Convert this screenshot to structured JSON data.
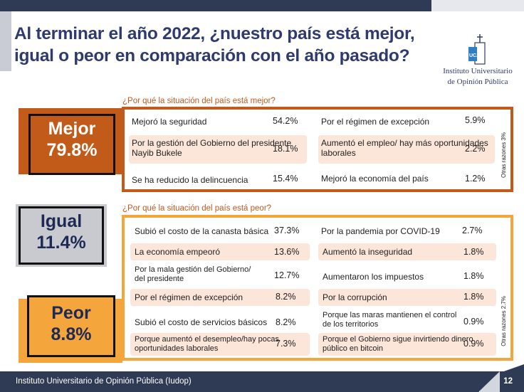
{
  "title": "Al terminar el año 2022, ¿nuestro país está mejor, igual o peor en comparación con el año pasado?",
  "logo": {
    "line1": "Instituto Universitario",
    "line2": "de Opinión Pública",
    "mark_text": "UCA"
  },
  "categories": {
    "mejor": {
      "label": "Mejor",
      "value": "79.8%",
      "color": "#c25b1a"
    },
    "igual": {
      "label": "Igual",
      "value": "11.4%",
      "color": "#c8cad0"
    },
    "peor": {
      "label": "Peor",
      "value": "8.8%",
      "color": "#f4a63c"
    }
  },
  "mejor_section": {
    "question": "¿Por qué la situación del país está mejor?",
    "side_note": "Otras razones 3%",
    "items": [
      {
        "reason": "Mejoró la seguridad",
        "value": "54.2%"
      },
      {
        "reason": "Por la gestión del Gobierno del presidente Nayib Bukele",
        "value": "18.1%"
      },
      {
        "reason": "Se ha reducido la delincuencia",
        "value": "15.4%"
      },
      {
        "reason": "Por el régimen de excepción",
        "value": "5.9%"
      },
      {
        "reason": "Aumentó el empleo/ hay más oportunidades laborales",
        "value": "2.2%"
      },
      {
        "reason": "Mejoró la economía del país",
        "value": "1.2%"
      }
    ]
  },
  "peor_section": {
    "question": "¿Por qué la situación del país está peor?",
    "side_note": "Otras razones 2.7%",
    "items": [
      {
        "reason": "Subió el costo de la canasta básica",
        "value": "37.3%"
      },
      {
        "reason": "La economía empeoró",
        "value": "13.6%"
      },
      {
        "reason": "Por la mala gestión del Gobierno/ del presidente",
        "value": "12.7%"
      },
      {
        "reason": "Por el régimen de excepción",
        "value": "8.2%"
      },
      {
        "reason": "Subió el costo de servicios básicos",
        "value": "8.2%"
      },
      {
        "reason": "Porque aumentó el desempleo/hay pocas oportunidades laborales",
        "value": "7.3%"
      },
      {
        "reason": "Por la pandemia por COVID-19",
        "value": "2.7%"
      },
      {
        "reason": "Aumentó la inseguridad",
        "value": "1.8%"
      },
      {
        "reason": "Aumentaron los impuestos",
        "value": "1.8%"
      },
      {
        "reason": "Por la corrupción",
        "value": "1.8%"
      },
      {
        "reason": "Porque las maras mantienen el control de los territorios",
        "value": "0.9%"
      },
      {
        "reason": "Porque el Gobierno sigue invirtiendo dinero público en bitcoin",
        "value": "0.9%"
      }
    ]
  },
  "footer": {
    "source": "Instituto Universitario de Opinión Pública (Iudop)",
    "page": "12"
  }
}
